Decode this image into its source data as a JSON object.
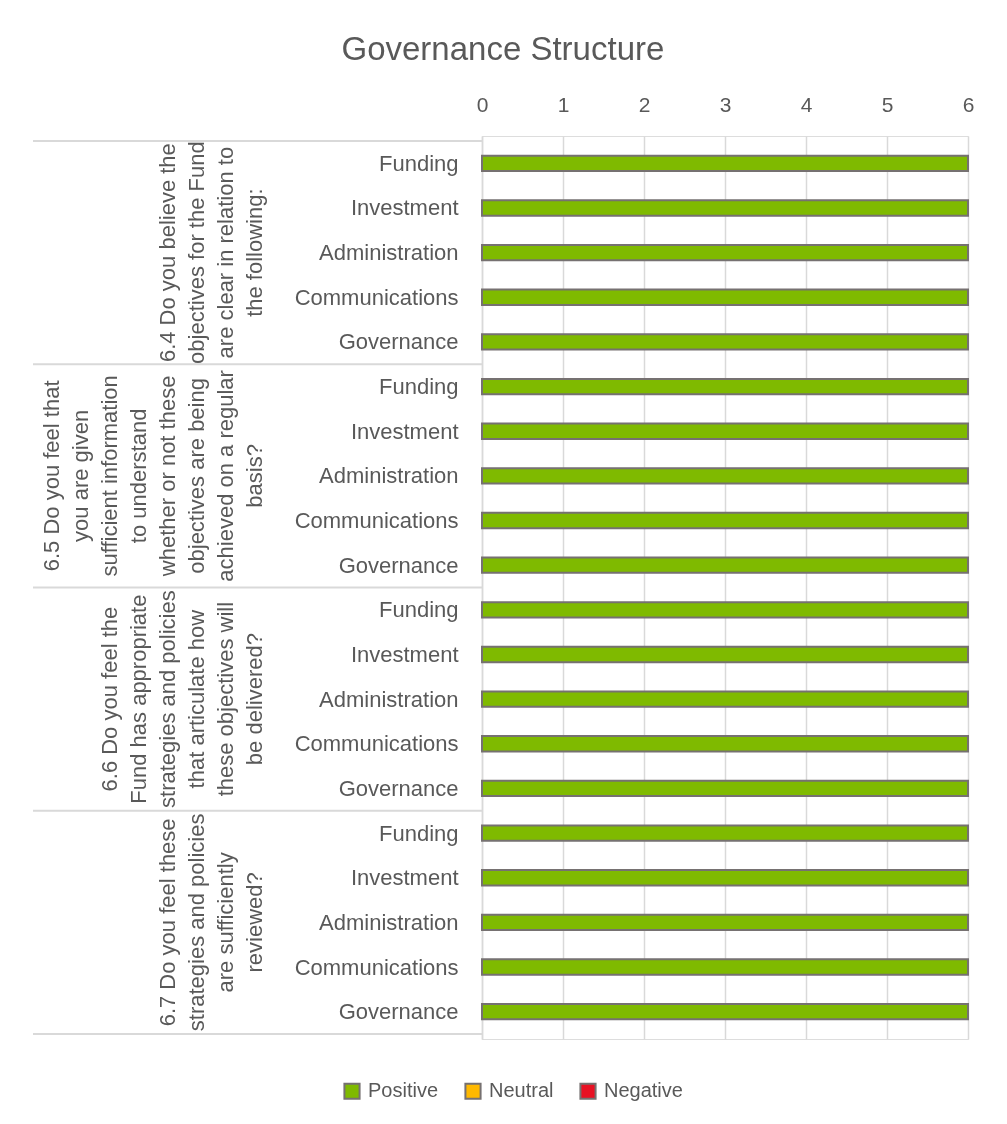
{
  "chart_data": {
    "type": "bar",
    "orientation": "horizontal",
    "stacked": true,
    "title": "Governance Structure",
    "categories": [
      "Funding",
      "Investment",
      "Administration",
      "Communications",
      "Governance",
      "Funding",
      "Investment",
      "Administration",
      "Communications",
      "Governance",
      "Funding",
      "Investment",
      "Administration",
      "Communications",
      "Governance",
      "Funding",
      "Investment",
      "Administration",
      "Communications",
      "Governance"
    ],
    "series": [
      {
        "name": "Positive",
        "color": "#7fba00",
        "values": [
          6,
          6,
          6,
          6,
          6,
          6,
          6,
          6,
          6,
          6,
          6,
          6,
          6,
          6,
          6,
          6,
          6,
          6,
          6,
          6
        ]
      },
      {
        "name": "Neutral",
        "color": "#ffb900",
        "values": [
          0,
          0,
          0,
          0,
          0,
          0,
          0,
          0,
          0,
          0,
          0,
          0,
          0,
          0,
          0,
          0,
          0,
          0,
          0,
          0
        ]
      },
      {
        "name": "Negative",
        "color": "#e81123",
        "values": [
          0,
          0,
          0,
          0,
          0,
          0,
          0,
          0,
          0,
          0,
          0,
          0,
          0,
          0,
          0,
          0,
          0,
          0,
          0,
          0
        ]
      }
    ],
    "xlim": [
      0,
      6
    ],
    "xticks": [
      0,
      1,
      2,
      3,
      4,
      5,
      6
    ],
    "grid": "x",
    "legend": "bottom",
    "annotations": [
      "6.4 Do you believe the\nobjectives for the Fund\nare clear in relation to\nthe following:",
      "6.5 Do you feel that\nyou are given\nsufficient information\nto understand\nwhether or not these\nobjectives are being\nachieved on a regular\nbasis?",
      "6.6 Do you feel the\nFund has appropriate\nstrategies and policies\nthat articulate how\nthese objectives will\nbe delivered?",
      "6.7 Do you feel these\nstrategies and policies\nare sufficiently\nreviewed?"
    ]
  }
}
